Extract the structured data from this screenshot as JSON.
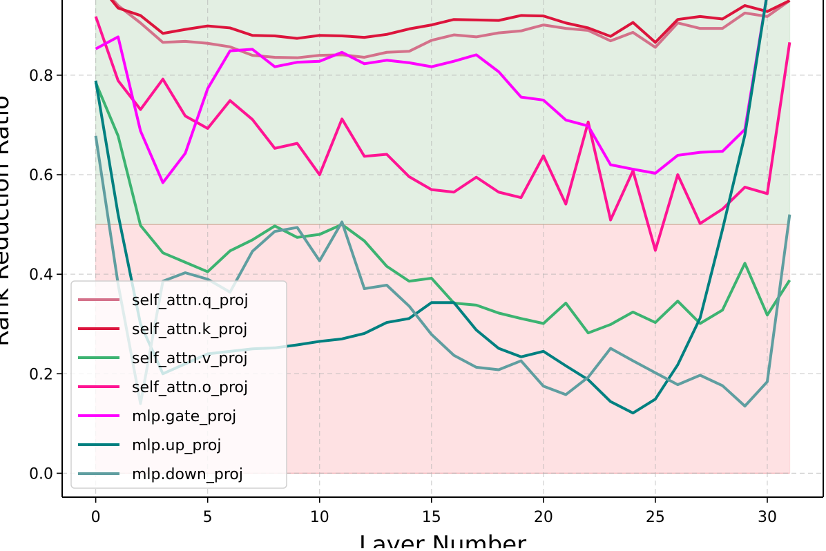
{
  "chart_data": {
    "type": "line",
    "title": "",
    "xlabel": "Layer Number",
    "ylabel": "Rank Reduction Ratio",
    "xlim": [
      -1.5,
      32.5
    ],
    "ylim": [
      -0.048,
      0.965
    ],
    "xticks": [
      0,
      5,
      10,
      15,
      20,
      25,
      30
    ],
    "xtick_labels": [
      "0",
      "5",
      "10",
      "15",
      "20",
      "25",
      "30"
    ],
    "yticks": [
      0.0,
      0.2,
      0.4,
      0.6,
      0.8
    ],
    "ytick_labels": [
      "0.0",
      "0.2",
      "0.4",
      "0.6",
      "0.8"
    ],
    "grid": true,
    "legend_position": "lower-left",
    "bands": [
      {
        "name": "high-reduction-band",
        "x0": 0,
        "x1": 31,
        "y0": 0.5,
        "y1": 1.0,
        "color": "#d9ead9",
        "opacity": 0.75
      },
      {
        "name": "low-reduction-band",
        "x0": 0,
        "x1": 31,
        "y0": 0.0,
        "y1": 0.5,
        "color": "#fdd7da",
        "opacity": 0.75
      }
    ],
    "x": [
      0,
      1,
      2,
      3,
      4,
      5,
      6,
      7,
      8,
      9,
      10,
      11,
      12,
      13,
      14,
      15,
      16,
      17,
      18,
      19,
      20,
      21,
      22,
      23,
      24,
      25,
      26,
      27,
      28,
      29,
      30,
      31
    ],
    "series": [
      {
        "name": "self_attn.q_proj",
        "color": "#d4718a",
        "values": [
          0.99,
          0.94,
          0.905,
          0.866,
          0.868,
          0.864,
          0.857,
          0.84,
          0.836,
          0.835,
          0.84,
          0.841,
          0.836,
          0.846,
          0.848,
          0.87,
          0.881,
          0.877,
          0.885,
          0.889,
          0.901,
          0.894,
          0.89,
          0.869,
          0.886,
          0.856,
          0.905,
          0.894,
          0.894,
          0.925,
          0.918,
          0.95
        ]
      },
      {
        "name": "self_attn.k_proj",
        "color": "#dc143c",
        "values": [
          0.99,
          0.935,
          0.92,
          0.884,
          0.892,
          0.899,
          0.895,
          0.88,
          0.879,
          0.874,
          0.88,
          0.879,
          0.876,
          0.882,
          0.893,
          0.901,
          0.912,
          0.911,
          0.91,
          0.92,
          0.919,
          0.905,
          0.895,
          0.878,
          0.906,
          0.866,
          0.912,
          0.918,
          0.913,
          0.94,
          0.928,
          0.95
        ]
      },
      {
        "name": "self_attn.v_proj",
        "color": "#3cb371",
        "values": [
          0.785,
          0.678,
          0.498,
          0.443,
          0.424,
          0.405,
          0.447,
          0.469,
          0.497,
          0.474,
          0.48,
          0.5,
          0.467,
          0.416,
          0.386,
          0.392,
          0.342,
          0.338,
          0.322,
          0.311,
          0.301,
          0.342,
          0.282,
          0.299,
          0.324,
          0.303,
          0.346,
          0.301,
          0.328,
          0.422,
          0.318,
          0.388
        ]
      },
      {
        "name": "self_attn.o_proj",
        "color": "#ff1493",
        "values": [
          0.918,
          0.789,
          0.731,
          0.792,
          0.718,
          0.693,
          0.749,
          0.711,
          0.653,
          0.663,
          0.6,
          0.712,
          0.637,
          0.641,
          0.596,
          0.57,
          0.565,
          0.595,
          0.565,
          0.554,
          0.638,
          0.541,
          0.706,
          0.509,
          0.608,
          0.448,
          0.6,
          0.502,
          0.531,
          0.575,
          0.562,
          0.866
        ]
      },
      {
        "name": "mlp.gate_proj",
        "color": "#ff00ff",
        "values": [
          0.853,
          0.877,
          0.688,
          0.584,
          0.643,
          0.773,
          0.849,
          0.852,
          0.817,
          0.826,
          0.828,
          0.846,
          0.823,
          0.83,
          0.825,
          0.817,
          0.828,
          0.841,
          0.807,
          0.756,
          0.75,
          0.71,
          0.698,
          0.62,
          0.611,
          0.603,
          0.639,
          0.645,
          0.647,
          0.691,
          0.965,
          0.965
        ]
      },
      {
        "name": "mlp.up_proj",
        "color": "#008080",
        "values": [
          0.789,
          0.52,
          0.3,
          0.2,
          0.22,
          0.24,
          0.245,
          0.25,
          0.252,
          0.258,
          0.265,
          0.27,
          0.281,
          0.303,
          0.311,
          0.343,
          0.343,
          0.288,
          0.251,
          0.234,
          0.245,
          0.216,
          0.188,
          0.144,
          0.121,
          0.149,
          0.218,
          0.312,
          0.49,
          0.68,
          0.965,
          0.965
        ]
      },
      {
        "name": "mlp.down_proj",
        "color": "#5f9ea0",
        "values": [
          0.678,
          0.38,
          0.14,
          0.386,
          0.403,
          0.39,
          0.364,
          0.446,
          0.486,
          0.494,
          0.427,
          0.505,
          0.371,
          0.378,
          0.336,
          0.279,
          0.237,
          0.213,
          0.208,
          0.226,
          0.175,
          0.158,
          0.193,
          0.251,
          0.226,
          0.202,
          0.178,
          0.197,
          0.176,
          0.135,
          0.184,
          0.52
        ]
      }
    ]
  }
}
